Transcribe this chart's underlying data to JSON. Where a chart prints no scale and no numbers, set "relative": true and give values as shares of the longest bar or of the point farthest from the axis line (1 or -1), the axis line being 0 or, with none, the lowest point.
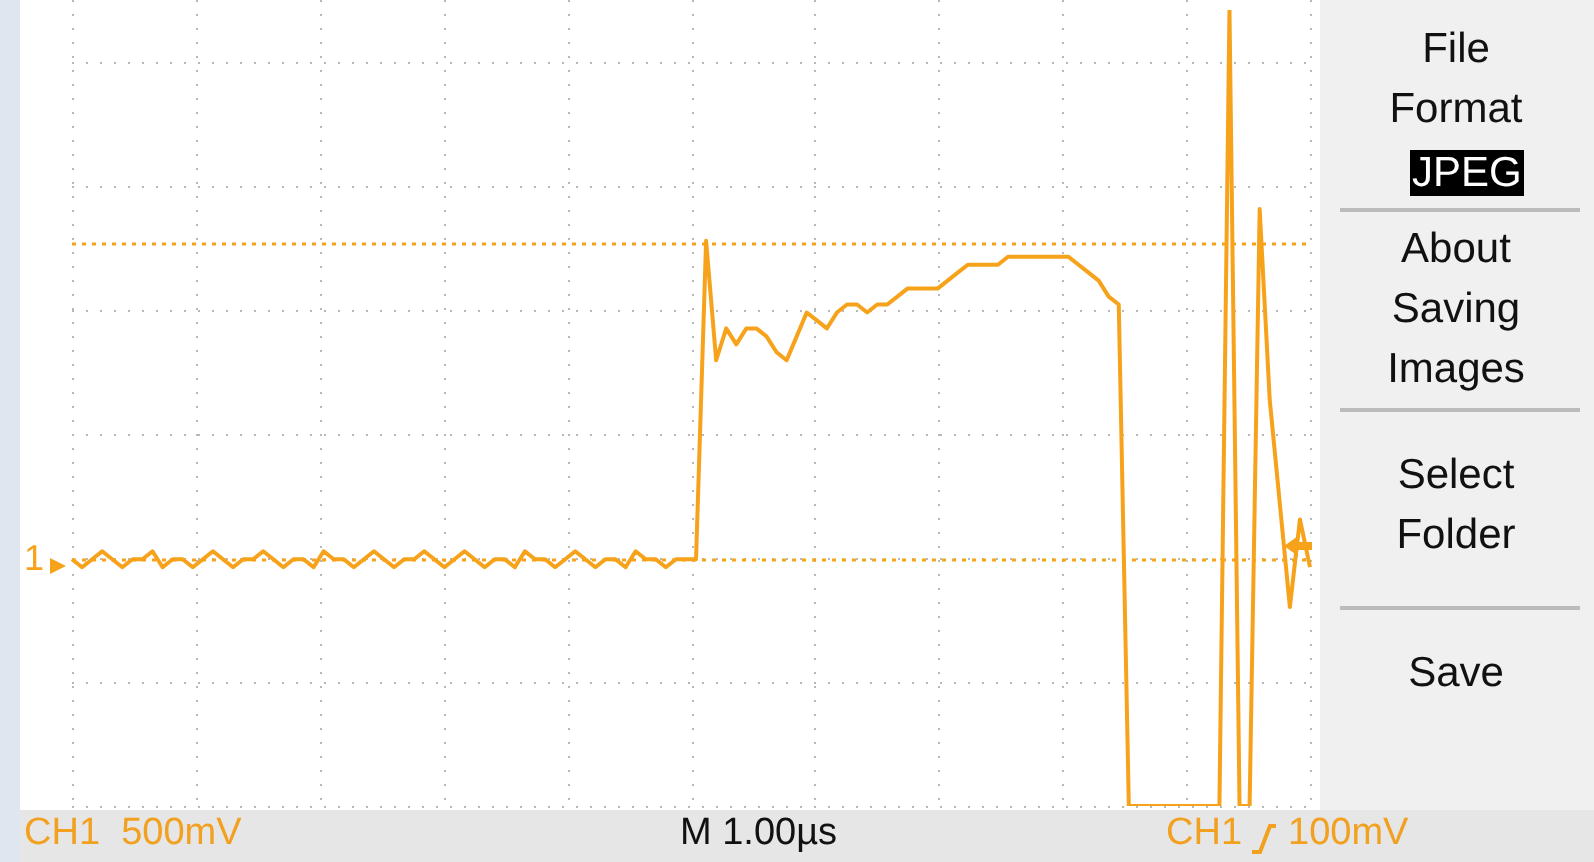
{
  "chart_data": {
    "type": "line",
    "relative": true,
    "grid": true,
    "legend": false,
    "marker": "none",
    "categories": [
      null,
      null,
      null,
      null,
      null,
      null,
      null,
      null,
      null,
      null,
      null,
      null,
      null,
      null,
      null,
      null,
      null,
      null,
      null,
      null,
      null,
      null,
      null,
      null,
      null,
      null,
      null,
      null,
      null,
      null,
      null,
      null,
      null,
      null,
      null,
      null,
      null,
      null,
      null,
      null,
      null,
      null,
      null,
      null,
      null,
      null,
      null,
      null,
      null,
      null,
      null,
      null,
      null,
      null,
      null,
      null,
      null,
      null,
      null,
      null,
      null,
      null,
      null,
      null,
      null,
      null,
      null,
      null,
      null,
      null,
      null,
      null,
      null,
      null,
      null,
      null,
      null,
      null,
      null,
      null,
      null,
      null,
      null,
      null,
      null,
      null,
      null,
      null,
      null,
      null,
      null,
      null,
      null,
      null,
      null,
      null,
      null,
      null,
      null,
      null,
      null,
      null,
      null,
      null,
      null,
      null,
      null,
      null,
      null,
      null,
      null,
      null,
      null,
      null,
      null,
      null,
      null,
      null,
      null,
      null,
      null,
      null,
      null,
      null
    ],
    "series": [
      {
        "color": "#f7a21b",
        "values": [
          0.31,
          0.3,
          0.31,
          0.32,
          0.31,
          0.3,
          0.31,
          0.31,
          0.32,
          0.3,
          0.31,
          0.31,
          0.3,
          0.31,
          0.32,
          0.31,
          0.3,
          0.31,
          0.31,
          0.32,
          0.31,
          0.3,
          0.31,
          0.31,
          0.3,
          0.32,
          0.31,
          0.31,
          0.3,
          0.31,
          0.32,
          0.31,
          0.3,
          0.31,
          0.31,
          0.32,
          0.31,
          0.3,
          0.31,
          0.32,
          0.31,
          0.3,
          0.31,
          0.31,
          0.3,
          0.32,
          0.31,
          0.31,
          0.3,
          0.31,
          0.32,
          0.31,
          0.3,
          0.31,
          0.31,
          0.3,
          0.32,
          0.31,
          0.31,
          0.3,
          0.31,
          0.31,
          0.31,
          0.71,
          0.56,
          0.6,
          0.58,
          0.6,
          0.6,
          0.59,
          0.57,
          0.56,
          0.59,
          0.62,
          0.61,
          0.6,
          0.62,
          0.63,
          0.63,
          0.62,
          0.63,
          0.63,
          0.64,
          0.65,
          0.65,
          0.65,
          0.65,
          0.66,
          0.67,
          0.68,
          0.68,
          0.68,
          0.68,
          0.69,
          0.69,
          0.69,
          0.69,
          0.69,
          0.69,
          0.69,
          0.68,
          0.67,
          0.66,
          0.64,
          0.63,
          0,
          0,
          0,
          0,
          0,
          0,
          0,
          0,
          0,
          0,
          1,
          0,
          0,
          0.75,
          0.51,
          0.38,
          0.25,
          0.36,
          0.3
        ]
      }
    ],
    "ref_lines": [
      {
        "axis": "y",
        "value": 0.706,
        "color": "#f7a21b",
        "line_style": "dotted"
      },
      {
        "axis": "y",
        "value": 0.309,
        "color": "#f7a21b",
        "line_style": "dotted"
      }
    ],
    "annotations": [
      "CH1 500mV",
      "M 1.00µs",
      "CH1",
      "100mV",
      "File Format",
      "JPEG",
      "About Saving Images",
      "Select Folder",
      "Save",
      "1"
    ]
  }
}
